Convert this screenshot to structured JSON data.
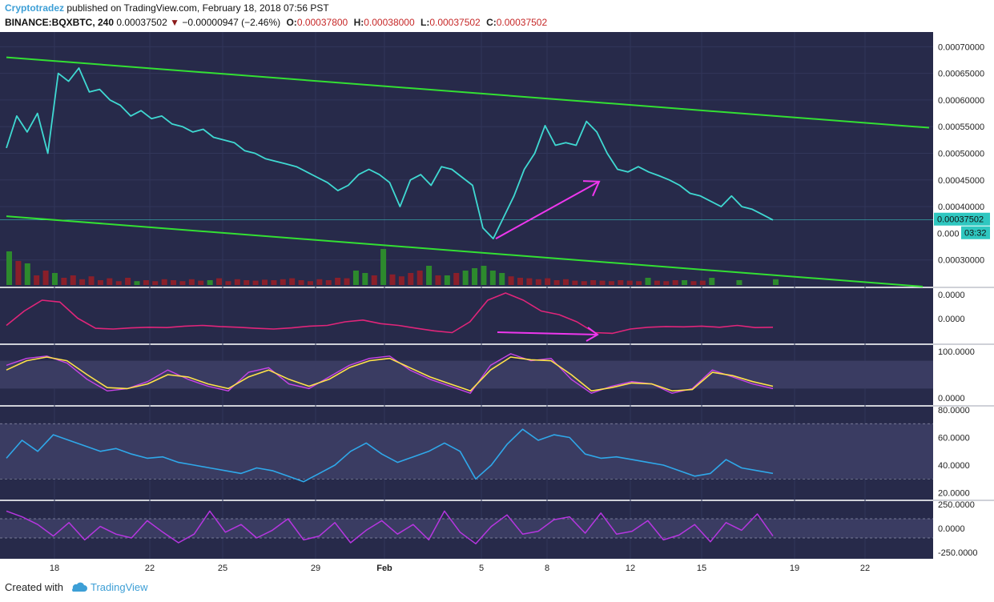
{
  "header": {
    "user": "Cryptotradez",
    "published": "published on TradingView.com, February 18, 2018 07:56 PST",
    "symbol": "BINANCE:BQXBTC, 240",
    "last": "0.00037502",
    "change": "−0.00000947 (−2.46%)",
    "o_label": "O:",
    "o": "0.00037800",
    "h_label": "H:",
    "h": "0.00038000",
    "l_label": "L:",
    "l": "0.00037502",
    "c_label": "C:",
    "c": "0.00037502"
  },
  "footer": {
    "created": "Created with",
    "brand": "TradingView"
  },
  "colors": {
    "bg": "#272a4a",
    "price": "#3fd9d2",
    "trend": "#33e033",
    "arrow": "#ee37ee",
    "vol_up": "#2d8a2d",
    "vol_down": "#8a1f2a",
    "ind1": "#e0257a",
    "stoch_k": "#c944e8",
    "stoch_d": "#ffe24a",
    "rsi": "#2fa8ea",
    "cci": "#b636e0"
  },
  "chart_data": {
    "type": "line",
    "x_ticks": [
      "18",
      "22",
      "25",
      "29",
      "Feb",
      "5",
      "8",
      "12",
      "15",
      "19",
      "22"
    ],
    "price_axis": {
      "ticks": [
        "0.00070000",
        "0.00065000",
        "0.00060000",
        "0.00055000",
        "0.00050000",
        "0.00045000",
        "0.00040000",
        "0.00030000"
      ],
      "last_price_label": "0.00037502",
      "countdown_label": "03:32",
      "partial_label": "0.000",
      "ylim": [
        0.00025,
        0.00072
      ]
    },
    "price_series": [
      [
        0,
        0.00051
      ],
      [
        1,
        0.00057
      ],
      [
        2,
        0.00054
      ],
      [
        3,
        0.000575
      ],
      [
        4,
        0.0005
      ],
      [
        5,
        0.00065
      ],
      [
        6,
        0.000635
      ],
      [
        7,
        0.00066
      ],
      [
        8,
        0.000615
      ],
      [
        9,
        0.00062
      ],
      [
        10,
        0.0006
      ],
      [
        11,
        0.00059
      ],
      [
        12,
        0.00057
      ],
      [
        13,
        0.00058
      ],
      [
        14,
        0.000565
      ],
      [
        15,
        0.00057
      ],
      [
        16,
        0.000555
      ],
      [
        17,
        0.00055
      ],
      [
        18,
        0.00054
      ],
      [
        19,
        0.000545
      ],
      [
        20,
        0.00053
      ],
      [
        21,
        0.000525
      ],
      [
        22,
        0.00052
      ],
      [
        23,
        0.000505
      ],
      [
        24,
        0.0005
      ],
      [
        25,
        0.00049
      ],
      [
        26,
        0.000485
      ],
      [
        27,
        0.00048
      ],
      [
        28,
        0.000475
      ],
      [
        29,
        0.000465
      ],
      [
        30,
        0.000455
      ],
      [
        31,
        0.000445
      ],
      [
        32,
        0.00043
      ],
      [
        33,
        0.00044
      ],
      [
        34,
        0.00046
      ],
      [
        35,
        0.00047
      ],
      [
        36,
        0.00046
      ],
      [
        37,
        0.000445
      ],
      [
        38,
        0.0004
      ],
      [
        39,
        0.00045
      ],
      [
        40,
        0.00046
      ],
      [
        41,
        0.00044
      ],
      [
        42,
        0.000475
      ],
      [
        43,
        0.00047
      ],
      [
        44,
        0.000455
      ],
      [
        45,
        0.00044
      ],
      [
        46,
        0.00036
      ],
      [
        47,
        0.00034
      ],
      [
        48,
        0.00038
      ],
      [
        49,
        0.00042
      ],
      [
        50,
        0.00047
      ],
      [
        51,
        0.0005
      ],
      [
        52,
        0.000552
      ],
      [
        53,
        0.000515
      ],
      [
        54,
        0.00052
      ],
      [
        55,
        0.000515
      ],
      [
        56,
        0.00056
      ],
      [
        57,
        0.00054
      ],
      [
        58,
        0.0005
      ],
      [
        59,
        0.00047
      ],
      [
        60,
        0.000465
      ],
      [
        61,
        0.000475
      ],
      [
        62,
        0.000465
      ],
      [
        63,
        0.000458
      ],
      [
        64,
        0.00045
      ],
      [
        65,
        0.00044
      ],
      [
        66,
        0.000425
      ],
      [
        67,
        0.00042
      ],
      [
        68,
        0.00041
      ],
      [
        69,
        0.0004
      ],
      [
        70,
        0.00042
      ],
      [
        71,
        0.0004
      ],
      [
        72,
        0.000395
      ],
      [
        73,
        0.000385
      ],
      [
        74,
        0.000375
      ]
    ],
    "volume": {
      "up": [
        [
          0,
          70
        ],
        [
          2,
          45
        ],
        [
          5,
          25
        ],
        [
          14,
          8
        ],
        [
          22,
          10
        ],
        [
          38,
          30
        ],
        [
          39,
          25
        ],
        [
          41,
          75
        ],
        [
          46,
          40
        ],
        [
          48,
          20
        ],
        [
          50,
          30
        ],
        [
          51,
          35
        ],
        [
          52,
          40
        ],
        [
          53,
          30
        ],
        [
          54,
          25
        ],
        [
          70,
          15
        ],
        [
          74,
          10
        ],
        [
          77,
          15
        ],
        [
          80,
          10
        ],
        [
          84,
          12
        ]
      ],
      "down": [
        [
          1,
          50
        ],
        [
          3,
          20
        ],
        [
          4,
          30
        ],
        [
          6,
          15
        ],
        [
          7,
          20
        ],
        [
          8,
          12
        ],
        [
          9,
          18
        ],
        [
          10,
          10
        ],
        [
          11,
          14
        ],
        [
          12,
          8
        ],
        [
          13,
          15
        ],
        [
          15,
          10
        ],
        [
          16,
          8
        ],
        [
          17,
          12
        ],
        [
          18,
          10
        ],
        [
          19,
          8
        ],
        [
          20,
          12
        ],
        [
          21,
          9
        ],
        [
          23,
          14
        ],
        [
          24,
          8
        ],
        [
          25,
          12
        ],
        [
          26,
          10
        ],
        [
          27,
          9
        ],
        [
          28,
          11
        ],
        [
          29,
          10
        ],
        [
          30,
          12
        ],
        [
          31,
          14
        ],
        [
          32,
          10
        ],
        [
          33,
          8
        ],
        [
          34,
          12
        ],
        [
          35,
          10
        ],
        [
          36,
          15
        ],
        [
          37,
          14
        ],
        [
          40,
          20
        ],
        [
          42,
          22
        ],
        [
          43,
          18
        ],
        [
          44,
          25
        ],
        [
          45,
          30
        ],
        [
          47,
          20
        ],
        [
          49,
          25
        ],
        [
          55,
          18
        ],
        [
          56,
          15
        ],
        [
          57,
          14
        ],
        [
          58,
          12
        ],
        [
          59,
          14
        ],
        [
          60,
          10
        ],
        [
          61,
          12
        ],
        [
          62,
          9
        ],
        [
          63,
          8
        ],
        [
          64,
          10
        ],
        [
          65,
          9
        ],
        [
          66,
          8
        ],
        [
          67,
          10
        ],
        [
          68,
          9
        ],
        [
          69,
          8
        ],
        [
          71,
          9
        ],
        [
          72,
          8
        ],
        [
          73,
          10
        ],
        [
          75,
          8
        ],
        [
          76,
          9
        ]
      ]
    },
    "indicator1": {
      "ticks": [
        "0.0000",
        "0.0000"
      ],
      "series": [
        [
          0,
          0.1
        ],
        [
          1,
          0.5
        ],
        [
          2,
          0.8
        ],
        [
          3,
          0.75
        ],
        [
          4,
          0.3
        ],
        [
          5,
          0.02
        ],
        [
          6,
          0.0
        ],
        [
          7,
          0.03
        ],
        [
          8,
          0.05
        ],
        [
          9,
          0.04
        ],
        [
          10,
          0.08
        ],
        [
          11,
          0.1
        ],
        [
          12,
          0.07
        ],
        [
          13,
          0.05
        ],
        [
          14,
          0.02
        ],
        [
          15,
          0.0
        ],
        [
          16,
          0.03
        ],
        [
          17,
          0.08
        ],
        [
          18,
          0.1
        ],
        [
          19,
          0.2
        ],
        [
          20,
          0.25
        ],
        [
          21,
          0.15
        ],
        [
          22,
          0.1
        ],
        [
          23,
          0.02
        ],
        [
          24,
          -0.05
        ],
        [
          25,
          -0.1
        ],
        [
          26,
          0.2
        ],
        [
          27,
          0.8
        ],
        [
          28,
          1.0
        ],
        [
          29,
          0.8
        ],
        [
          30,
          0.5
        ],
        [
          31,
          0.4
        ],
        [
          32,
          0.2
        ],
        [
          33,
          -0.1
        ],
        [
          34,
          -0.12
        ],
        [
          35,
          0.0
        ],
        [
          36,
          0.05
        ],
        [
          37,
          0.07
        ],
        [
          38,
          0.06
        ],
        [
          39,
          0.08
        ],
        [
          40,
          0.05
        ],
        [
          41,
          0.1
        ],
        [
          42,
          0.04
        ],
        [
          43,
          0.05
        ]
      ]
    },
    "stochastic": {
      "ticks": [
        "100.0000",
        "0.0000"
      ],
      "k": [
        [
          0,
          70
        ],
        [
          1,
          85
        ],
        [
          2,
          90
        ],
        [
          3,
          75
        ],
        [
          4,
          40
        ],
        [
          5,
          15
        ],
        [
          6,
          20
        ],
        [
          7,
          35
        ],
        [
          8,
          60
        ],
        [
          9,
          40
        ],
        [
          10,
          25
        ],
        [
          11,
          15
        ],
        [
          12,
          55
        ],
        [
          13,
          65
        ],
        [
          14,
          30
        ],
        [
          15,
          20
        ],
        [
          16,
          45
        ],
        [
          17,
          70
        ],
        [
          18,
          85
        ],
        [
          19,
          90
        ],
        [
          20,
          60
        ],
        [
          21,
          40
        ],
        [
          22,
          25
        ],
        [
          23,
          10
        ],
        [
          24,
          70
        ],
        [
          25,
          95
        ],
        [
          26,
          80
        ],
        [
          27,
          85
        ],
        [
          28,
          40
        ],
        [
          29,
          10
        ],
        [
          30,
          25
        ],
        [
          31,
          35
        ],
        [
          32,
          30
        ],
        [
          33,
          10
        ],
        [
          34,
          20
        ],
        [
          35,
          60
        ],
        [
          36,
          45
        ],
        [
          37,
          30
        ],
        [
          38,
          20
        ]
      ],
      "d": [
        [
          0,
          60
        ],
        [
          1,
          80
        ],
        [
          2,
          88
        ],
        [
          3,
          80
        ],
        [
          4,
          50
        ],
        [
          5,
          22
        ],
        [
          6,
          20
        ],
        [
          7,
          30
        ],
        [
          8,
          50
        ],
        [
          9,
          45
        ],
        [
          10,
          30
        ],
        [
          11,
          20
        ],
        [
          12,
          45
        ],
        [
          13,
          60
        ],
        [
          14,
          40
        ],
        [
          15,
          25
        ],
        [
          16,
          40
        ],
        [
          17,
          65
        ],
        [
          18,
          80
        ],
        [
          19,
          85
        ],
        [
          20,
          65
        ],
        [
          21,
          45
        ],
        [
          22,
          30
        ],
        [
          23,
          15
        ],
        [
          24,
          60
        ],
        [
          25,
          88
        ],
        [
          26,
          82
        ],
        [
          27,
          80
        ],
        [
          28,
          50
        ],
        [
          29,
          15
        ],
        [
          30,
          22
        ],
        [
          31,
          32
        ],
        [
          32,
          30
        ],
        [
          33,
          15
        ],
        [
          34,
          18
        ],
        [
          35,
          55
        ],
        [
          36,
          48
        ],
        [
          37,
          35
        ],
        [
          38,
          25
        ]
      ]
    },
    "rsi": {
      "ticks": [
        "80.0000",
        "60.0000",
        "40.0000",
        "20.0000"
      ],
      "series": [
        [
          0,
          45
        ],
        [
          1,
          58
        ],
        [
          2,
          50
        ],
        [
          3,
          62
        ],
        [
          4,
          58
        ],
        [
          5,
          54
        ],
        [
          6,
          50
        ],
        [
          7,
          52
        ],
        [
          8,
          48
        ],
        [
          9,
          45
        ],
        [
          10,
          46
        ],
        [
          11,
          42
        ],
        [
          12,
          40
        ],
        [
          13,
          38
        ],
        [
          14,
          36
        ],
        [
          15,
          34
        ],
        [
          16,
          38
        ],
        [
          17,
          36
        ],
        [
          18,
          32
        ],
        [
          19,
          28
        ],
        [
          20,
          34
        ],
        [
          21,
          40
        ],
        [
          22,
          50
        ],
        [
          23,
          56
        ],
        [
          24,
          48
        ],
        [
          25,
          42
        ],
        [
          26,
          46
        ],
        [
          27,
          50
        ],
        [
          28,
          56
        ],
        [
          29,
          50
        ],
        [
          30,
          30
        ],
        [
          31,
          40
        ],
        [
          32,
          55
        ],
        [
          33,
          66
        ],
        [
          34,
          58
        ],
        [
          35,
          62
        ],
        [
          36,
          60
        ],
        [
          37,
          48
        ],
        [
          38,
          45
        ],
        [
          39,
          46
        ],
        [
          40,
          44
        ],
        [
          41,
          42
        ],
        [
          42,
          40
        ],
        [
          43,
          36
        ],
        [
          44,
          32
        ],
        [
          45,
          34
        ],
        [
          46,
          44
        ],
        [
          47,
          38
        ],
        [
          48,
          36
        ],
        [
          49,
          34
        ]
      ]
    },
    "cci": {
      "ticks": [
        "250.0000",
        "0.0000",
        "-250.0000"
      ],
      "series": [
        [
          0,
          180
        ],
        [
          1,
          120
        ],
        [
          2,
          40
        ],
        [
          3,
          -80
        ],
        [
          4,
          60
        ],
        [
          5,
          -120
        ],
        [
          6,
          20
        ],
        [
          7,
          -60
        ],
        [
          8,
          -100
        ],
        [
          9,
          80
        ],
        [
          10,
          -40
        ],
        [
          11,
          -150
        ],
        [
          12,
          -60
        ],
        [
          13,
          180
        ],
        [
          14,
          -40
        ],
        [
          15,
          40
        ],
        [
          16,
          -100
        ],
        [
          17,
          -20
        ],
        [
          18,
          100
        ],
        [
          19,
          -120
        ],
        [
          20,
          -80
        ],
        [
          21,
          60
        ],
        [
          22,
          -150
        ],
        [
          23,
          -20
        ],
        [
          24,
          80
        ],
        [
          25,
          -60
        ],
        [
          26,
          40
        ],
        [
          27,
          -120
        ],
        [
          28,
          180
        ],
        [
          29,
          -40
        ],
        [
          30,
          -160
        ],
        [
          31,
          20
        ],
        [
          32,
          140
        ],
        [
          33,
          -60
        ],
        [
          34,
          -30
        ],
        [
          35,
          90
        ],
        [
          36,
          120
        ],
        [
          37,
          -50
        ],
        [
          38,
          160
        ],
        [
          39,
          -60
        ],
        [
          40,
          -30
        ],
        [
          41,
          80
        ],
        [
          42,
          -120
        ],
        [
          43,
          -70
        ],
        [
          44,
          40
        ],
        [
          45,
          -140
        ],
        [
          46,
          60
        ],
        [
          47,
          -20
        ],
        [
          48,
          150
        ],
        [
          49,
          -80
        ]
      ]
    }
  }
}
